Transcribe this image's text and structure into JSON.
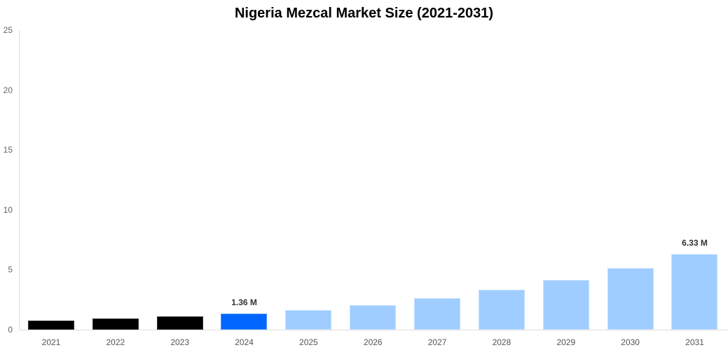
{
  "chart_data": {
    "type": "bar",
    "title": "Nigeria Mezcal Market Size (2021-2031)",
    "xlabel": "",
    "ylabel": "",
    "ylim": [
      0,
      25
    ],
    "yticks": [
      0,
      5,
      10,
      15,
      20,
      25
    ],
    "grid": false,
    "legend": null,
    "categories": [
      "2021",
      "2022",
      "2023",
      "2024",
      "2025",
      "2026",
      "2027",
      "2028",
      "2029",
      "2030",
      "2031"
    ],
    "values": [
      0.78,
      0.93,
      1.09,
      1.36,
      1.64,
      2.06,
      2.65,
      3.33,
      4.15,
      5.16,
      6.33
    ],
    "unit": "M",
    "bar_roles": [
      "historical",
      "historical",
      "historical",
      "current",
      "forecast",
      "forecast",
      "forecast",
      "forecast",
      "forecast",
      "forecast",
      "forecast"
    ],
    "annotations": [
      {
        "category": "2024",
        "text": "1.36 M"
      },
      {
        "category": "2031",
        "text": "6.33 M"
      }
    ],
    "colors": {
      "historical": "#000000",
      "current": "#0066ff",
      "forecast": "#a0cdff"
    }
  }
}
